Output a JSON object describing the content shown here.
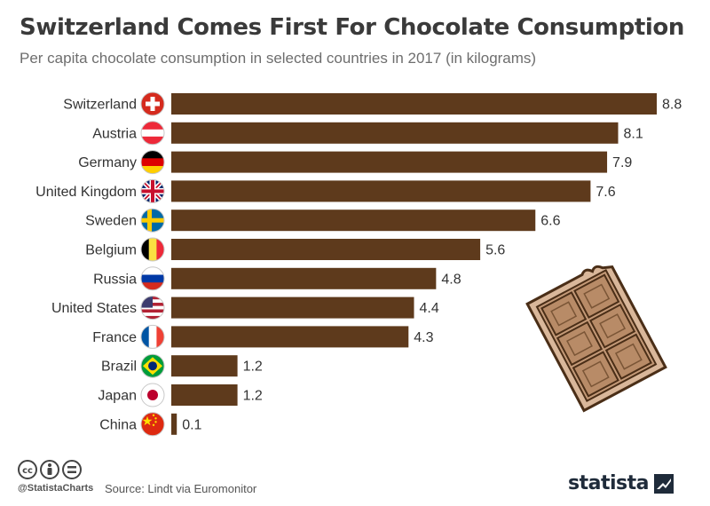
{
  "header": {
    "title": "Switzerland Comes First For Chocolate Consumption",
    "subtitle": "Per capita chocolate consumption in selected countries in 2017 (in kilograms)"
  },
  "chart_data": {
    "type": "bar",
    "orientation": "horizontal",
    "categories": [
      "Switzerland",
      "Austria",
      "Germany",
      "United Kingdom",
      "Sweden",
      "Belgium",
      "Russia",
      "United States",
      "France",
      "Brazil",
      "Japan",
      "China"
    ],
    "values": [
      8.8,
      8.1,
      7.9,
      7.6,
      6.6,
      5.6,
      4.8,
      4.4,
      4.3,
      1.2,
      1.2,
      0.1
    ],
    "value_labels": [
      "8.8",
      "8.1",
      "7.9",
      "7.6",
      "6.6",
      "5.6",
      "4.8",
      "4.4",
      "4.3",
      "1.2",
      "1.2",
      "0.1"
    ],
    "xlim": [
      0,
      8.8
    ],
    "grid": false,
    "bar_color": "#5e3a1c",
    "flags": [
      "switzerland-flag",
      "austria-flag",
      "germany-flag",
      "uk-flag",
      "sweden-flag",
      "belgium-flag",
      "russia-flag",
      "usa-flag",
      "france-flag",
      "brazil-flag",
      "japan-flag",
      "china-flag"
    ]
  },
  "footer": {
    "handle": "@StatistaCharts",
    "source": "Source: Lindt via Euromonitor",
    "brand": "statista"
  },
  "icons": {
    "license": [
      "cc-icon",
      "attribution-icon",
      "no-derivatives-icon"
    ],
    "decoration": "chocolate-bar-icon",
    "brand_logo": "statista-logo-icon"
  }
}
